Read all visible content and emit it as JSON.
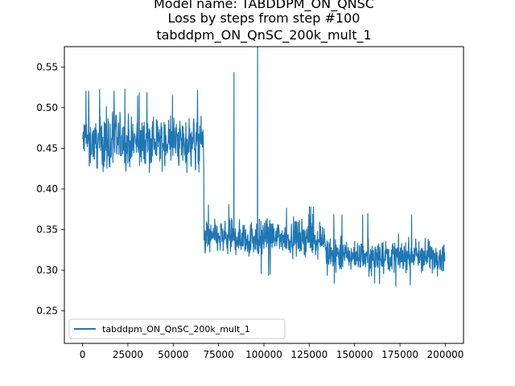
{
  "chart_data": {
    "type": "line",
    "title_lines": [
      "Model name: TABDDPM_ON_QNSC",
      "Loss by steps from step #100",
      "tabddpm_ON_QnSC_200k_mult_1"
    ],
    "xlabel": "",
    "ylabel": "",
    "xlim": [
      -10000,
      210000
    ],
    "ylim": [
      0.21,
      0.575
    ],
    "x_ticks": [
      0,
      25000,
      50000,
      75000,
      100000,
      125000,
      150000,
      175000,
      200000
    ],
    "x_tick_labels": [
      "0",
      "25000",
      "50000",
      "75000",
      "100000",
      "125000",
      "150000",
      "175000",
      "200000"
    ],
    "y_ticks": [
      0.25,
      0.3,
      0.35,
      0.4,
      0.45,
      0.5,
      0.55
    ],
    "y_tick_labels": [
      "0.25",
      "0.30",
      "0.35",
      "0.40",
      "0.45",
      "0.50",
      "0.55"
    ],
    "grid": false,
    "legend_position": "lower-left",
    "series": [
      {
        "name": "tabddpm_ON_QnSC_200k_mult_1",
        "color": "#1f77b4",
        "segments": [
          {
            "x_start": 100,
            "x_end": 67000,
            "mean": 0.458,
            "spread": 0.03,
            "min": 0.42,
            "max": 0.523
          },
          {
            "x_start": 67000,
            "x_end": 134000,
            "mean": 0.34,
            "spread": 0.02,
            "min": 0.292,
            "max": 0.382
          },
          {
            "x_start": 134000,
            "x_end": 200000,
            "mean": 0.318,
            "spread": 0.018,
            "min": 0.279,
            "max": 0.373
          }
        ],
        "spikes": [
          {
            "x": 83500,
            "y": 0.543
          },
          {
            "x": 96500,
            "y": 0.58
          }
        ]
      }
    ]
  }
}
